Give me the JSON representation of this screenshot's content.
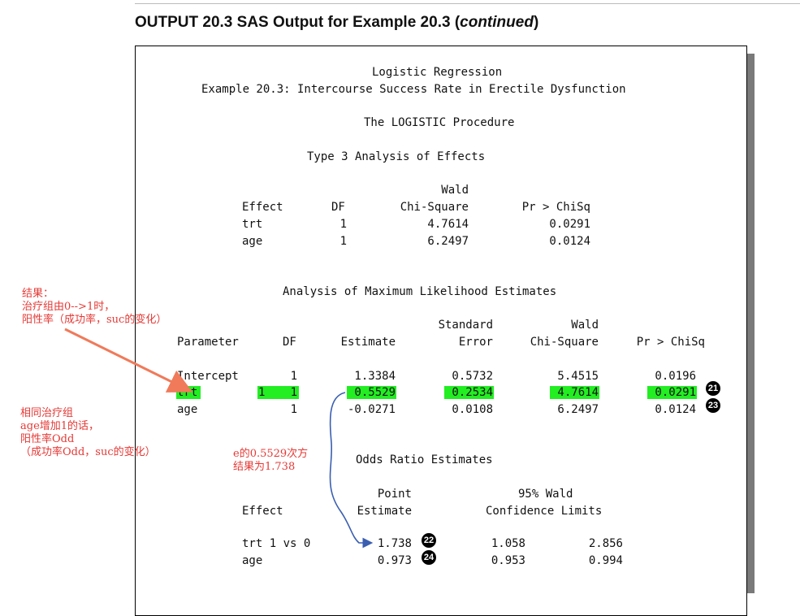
{
  "heading": {
    "prefix": "OUTPUT 20.3  SAS Output for Example 20.3 (",
    "emph": "continued",
    "suffix": ")"
  },
  "output": {
    "title1": "Logistic Regression",
    "title2": "Example 20.3: Intercourse Success Rate in Erectile Dysfunction",
    "procedure": "The LOGISTIC Procedure",
    "type3": {
      "title": "Type 3 Analysis of Effects",
      "header_top": "Wald",
      "headers": [
        "Effect",
        "DF",
        "Chi-Square",
        "Pr > ChiSq"
      ],
      "rows": [
        [
          "trt",
          "1",
          "4.7614",
          "0.0291"
        ],
        [
          "age",
          "1",
          "6.2497",
          "0.0124"
        ]
      ]
    },
    "mle": {
      "title": "Analysis of Maximum Likelihood Estimates",
      "header_top": [
        "Standard",
        "Wald"
      ],
      "headers": [
        "Parameter",
        "DF",
        "Estimate",
        "Error",
        "Chi-Square",
        "Pr > ChiSq"
      ],
      "rows": [
        {
          "param": "Intercept",
          "level": "",
          "df": "1",
          "est": "1.3384",
          "se": "0.5732",
          "chisq": "5.4515",
          "p": "0.0196"
        },
        {
          "param": "trt",
          "level": "1",
          "df": "1",
          "est": "0.5529",
          "se": "0.2534",
          "chisq": "4.7614",
          "p": "0.0291"
        },
        {
          "param": "age",
          "level": "",
          "df": "1",
          "est": "-0.0271",
          "se": "0.0108",
          "chisq": "6.2497",
          "p": "0.0124"
        }
      ],
      "badges": [
        "21",
        "23"
      ]
    },
    "odds": {
      "title": "Odds Ratio Estimates",
      "header_top": [
        "Point",
        "95% Wald"
      ],
      "headers": [
        "Effect",
        "Estimate",
        "Confidence Limits"
      ],
      "rows": [
        {
          "effect": "trt 1 vs 0",
          "est": "1.738",
          "lo": "1.058",
          "hi": "2.856"
        },
        {
          "effect": "age",
          "est": "0.973",
          "lo": "0.953",
          "hi": "0.994"
        }
      ],
      "badges": [
        "22",
        "24"
      ]
    }
  },
  "annotations": {
    "result": "结果：\n治疗组由0-->1时，\n阳性率（成功率，suc的变化）",
    "age_note": "相同治疗组\nage增加1的话，\n阳性率Odd\n（成功率Odd，suc的变化）",
    "exp_note": "e的0.5529次方\n结果为1.738"
  },
  "colors": {
    "highlight": "#22ee22",
    "annotation_red": "#e53935",
    "arrow_orange": "#f07a5a",
    "arrow_blue": "#3a5fb0"
  }
}
